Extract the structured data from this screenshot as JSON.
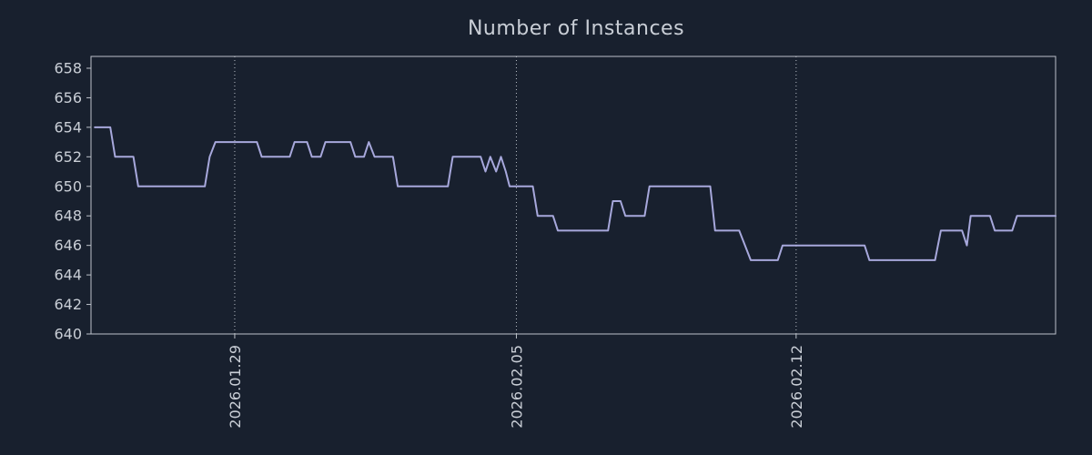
{
  "title": "Number of Instances",
  "colors": {
    "background": "#18202e",
    "line": "#a7a8dc",
    "text": "#c9ced6",
    "border": "#bcc1c9",
    "grid": "#e2e6ed"
  },
  "chart_data": {
    "type": "line",
    "title": "Number of Instances",
    "xlabel": "",
    "ylabel": "",
    "ylim": [
      640,
      658.8
    ],
    "yticks": [
      640,
      642,
      644,
      646,
      648,
      650,
      652,
      654,
      656,
      658
    ],
    "xticks": [
      {
        "pos": 14.9,
        "label": "2026.01.29"
      },
      {
        "pos": 44.1,
        "label": "2026.02.05"
      },
      {
        "pos": 73.1,
        "label": "2026.02.12"
      }
    ],
    "grid": "vertical-dotted",
    "legend": "none",
    "series": [
      {
        "name": "Number of Instances",
        "color": "#a7a8dc",
        "points": [
          [
            0.4,
            654
          ],
          [
            2.0,
            654
          ],
          [
            2.5,
            652
          ],
          [
            4.4,
            652
          ],
          [
            4.9,
            650
          ],
          [
            11.8,
            650
          ],
          [
            12.3,
            652
          ],
          [
            12.9,
            653
          ],
          [
            17.2,
            653
          ],
          [
            17.7,
            652
          ],
          [
            20.6,
            652
          ],
          [
            21.1,
            653
          ],
          [
            22.4,
            653
          ],
          [
            22.9,
            652
          ],
          [
            23.8,
            652
          ],
          [
            24.3,
            653
          ],
          [
            26.9,
            653
          ],
          [
            27.4,
            652
          ],
          [
            28.3,
            652
          ],
          [
            28.8,
            653
          ],
          [
            29.4,
            652
          ],
          [
            31.3,
            652
          ],
          [
            31.8,
            650
          ],
          [
            37.0,
            650
          ],
          [
            37.5,
            652
          ],
          [
            40.4,
            652
          ],
          [
            40.9,
            651
          ],
          [
            41.4,
            652
          ],
          [
            42.0,
            651
          ],
          [
            42.5,
            652
          ],
          [
            43.0,
            651
          ],
          [
            43.4,
            650
          ],
          [
            45.8,
            650
          ],
          [
            46.3,
            648
          ],
          [
            47.9,
            648
          ],
          [
            48.4,
            647
          ],
          [
            53.6,
            647
          ],
          [
            54.1,
            649
          ],
          [
            54.9,
            649
          ],
          [
            55.4,
            648
          ],
          [
            57.4,
            648
          ],
          [
            57.9,
            650
          ],
          [
            64.2,
            650
          ],
          [
            64.7,
            647
          ],
          [
            67.2,
            647
          ],
          [
            67.8,
            646
          ],
          [
            68.4,
            645
          ],
          [
            71.2,
            645
          ],
          [
            71.7,
            646
          ],
          [
            80.2,
            646
          ],
          [
            80.7,
            645
          ],
          [
            87.5,
            645
          ],
          [
            88.1,
            647
          ],
          [
            90.3,
            647
          ],
          [
            90.8,
            646
          ],
          [
            91.2,
            648
          ],
          [
            93.2,
            648
          ],
          [
            93.7,
            647
          ],
          [
            95.5,
            647
          ],
          [
            96.0,
            648
          ],
          [
            100,
            648
          ]
        ]
      }
    ]
  }
}
